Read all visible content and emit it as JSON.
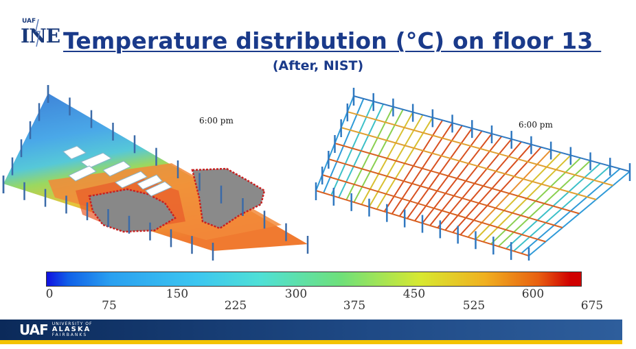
{
  "logo": {
    "uaf": "UAF",
    "ine": "INE"
  },
  "slide": {
    "title": "Temperature distribution (°C) on floor 13 ",
    "subtitle": "(After, NIST)"
  },
  "panels": {
    "left_time": "6:00 pm",
    "right_time": "6:00 pm"
  },
  "colorbar": {
    "upper_ticks": [
      "0",
      "150",
      "300",
      "450",
      "600"
    ],
    "lower_ticks": [
      "75",
      "225",
      "375",
      "525",
      "675"
    ]
  },
  "footer": {
    "uaf": "UAF",
    "univ_line1": "UNIVERSITY OF",
    "univ_line2": "ALASKA",
    "univ_line3": "FAIRBANKS"
  }
}
